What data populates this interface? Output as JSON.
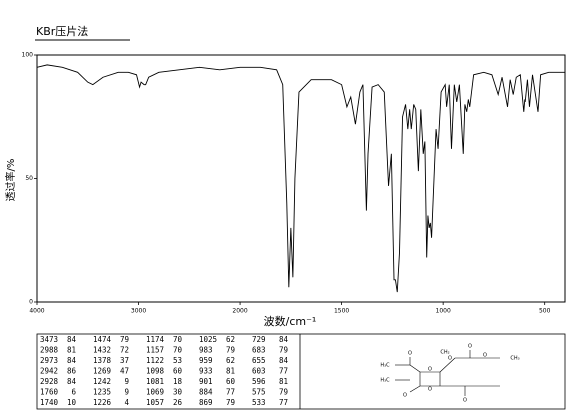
{
  "chart_data": {
    "type": "line",
    "title": "KBr压片法",
    "x_label": "波数/cm⁻¹",
    "y_label": "透过率/%",
    "xlim": [
      4000,
      400
    ],
    "ylim": [
      0,
      100
    ],
    "xticks": [
      4000,
      3000,
      2000,
      1500,
      1000,
      500
    ],
    "yticks": [
      0,
      50,
      100
    ],
    "x_scale_break": 2000,
    "x_scale_ratio": 2,
    "color": "#000000",
    "grid": false,
    "x": [
      4000,
      3900,
      3750,
      3600,
      3500,
      3450,
      3350,
      3200,
      3100,
      3020,
      2990,
      2975,
      2945,
      2930,
      2900,
      2800,
      2600,
      2400,
      2200,
      2000,
      1900,
      1820,
      1790,
      1770,
      1760,
      1750,
      1740,
      1730,
      1710,
      1650,
      1550,
      1500,
      1474,
      1455,
      1432,
      1410,
      1395,
      1378,
      1370,
      1350,
      1320,
      1290,
      1269,
      1255,
      1242,
      1235,
      1226,
      1215,
      1200,
      1185,
      1174,
      1165,
      1157,
      1145,
      1135,
      1122,
      1110,
      1098,
      1090,
      1081,
      1075,
      1069,
      1063,
      1057,
      1045,
      1035,
      1025,
      1010,
      990,
      983,
      970,
      959,
      945,
      933,
      920,
      901,
      893,
      884,
      876,
      869,
      850,
      800,
      760,
      729,
      710,
      683,
      670,
      655,
      640,
      620,
      603,
      598,
      596,
      585,
      575,
      560,
      533,
      520,
      480,
      440,
      400
    ],
    "values": [
      95,
      96,
      95,
      93,
      89,
      88,
      91,
      93,
      93,
      92,
      87,
      89,
      88,
      88,
      91,
      93,
      94,
      95,
      94,
      95,
      95,
      94,
      88,
      40,
      6,
      30,
      10,
      50,
      85,
      90,
      90,
      88,
      79,
      83,
      72,
      85,
      88,
      37,
      60,
      87,
      88,
      85,
      47,
      60,
      9,
      9,
      4,
      20,
      75,
      80,
      70,
      78,
      70,
      80,
      78,
      53,
      78,
      60,
      65,
      18,
      35,
      30,
      32,
      26,
      50,
      70,
      62,
      85,
      88,
      79,
      88,
      62,
      88,
      81,
      88,
      60,
      80,
      77,
      82,
      79,
      92,
      93,
      92,
      84,
      91,
      79,
      90,
      84,
      91,
      92,
      77,
      82,
      81,
      90,
      79,
      92,
      77,
      92,
      93,
      93,
      93
    ]
  },
  "peak_table": {
    "columns": [
      [
        [
          3473,
          84
        ],
        [
          2988,
          81
        ],
        [
          2973,
          84
        ],
        [
          2942,
          86
        ],
        [
          2928,
          84
        ],
        [
          1760,
          6
        ],
        [
          1740,
          10
        ]
      ],
      [
        [
          1474,
          79
        ],
        [
          1432,
          72
        ],
        [
          1378,
          37
        ],
        [
          1269,
          47
        ],
        [
          1242,
          9
        ],
        [
          1235,
          9
        ],
        [
          1226,
          4
        ]
      ],
      [
        [
          1174,
          70
        ],
        [
          1157,
          70
        ],
        [
          1122,
          53
        ],
        [
          1098,
          60
        ],
        [
          1081,
          18
        ],
        [
          1069,
          30
        ],
        [
          1057,
          26
        ]
      ],
      [
        [
          1025,
          62
        ],
        [
          983,
          79
        ],
        [
          959,
          62
        ],
        [
          933,
          81
        ],
        [
          901,
          60
        ],
        [
          884,
          77
        ],
        [
          869,
          79
        ]
      ],
      [
        [
          729,
          84
        ],
        [
          683,
          79
        ],
        [
          655,
          84
        ],
        [
          603,
          77
        ],
        [
          596,
          81
        ],
        [
          575,
          79
        ],
        [
          533,
          77
        ]
      ]
    ]
  },
  "structure": {
    "labels": [
      "H₃C",
      "H₃C",
      "O",
      "O",
      "O",
      "O",
      "O",
      "O",
      "CH₂",
      "CH₃",
      "O",
      "O"
    ]
  }
}
